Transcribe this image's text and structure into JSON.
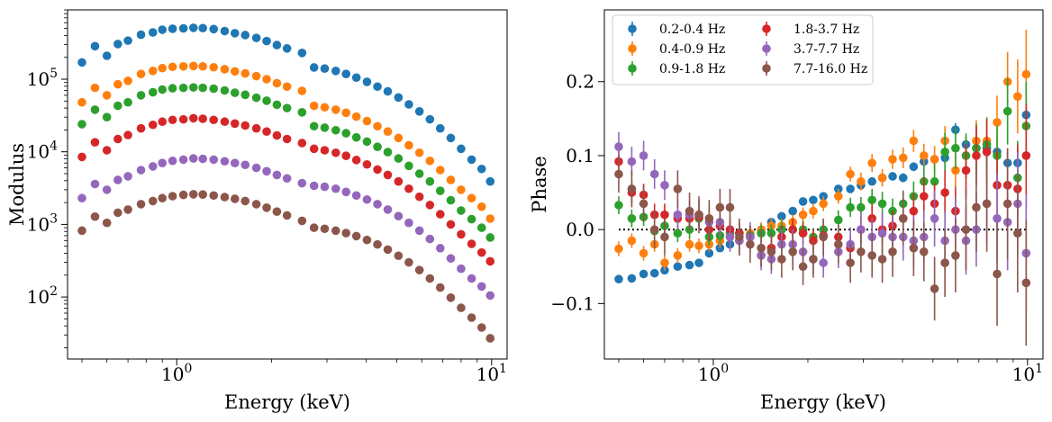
{
  "chart_data": [
    {
      "type": "scatter",
      "xscale": "log",
      "yscale": "log",
      "xlabel": "Energy (keV)",
      "ylabel": "Modulus",
      "xlim": [
        0.45,
        11.2
      ],
      "ylim": [
        14,
        900000
      ],
      "x_tick_labels": [
        "10^0",
        "10^1"
      ],
      "y_tick_labels": [
        "10^2",
        "10^3",
        "10^4",
        "10^5"
      ],
      "grid": false,
      "energies": [
        0.5,
        0.55,
        0.6,
        0.65,
        0.7,
        0.77,
        0.84,
        0.9,
        0.97,
        1.05,
        1.13,
        1.21,
        1.31,
        1.42,
        1.53,
        1.65,
        1.79,
        1.93,
        2.08,
        2.24,
        2.5,
        2.73,
        2.95,
        3.2,
        3.45,
        3.72,
        4.02,
        4.34,
        4.68,
        5.06,
        5.46,
        5.9,
        6.37,
        6.87,
        7.42,
        8.0,
        8.64,
        9.3,
        9.9
      ],
      "series": [
        {
          "name": "0.2-0.4 Hz",
          "color": "#1f77b4",
          "values": [
            170000,
            285000,
            210000,
            305000,
            340000,
            410000,
            440000,
            480000,
            495000,
            500000,
            510000,
            505000,
            490000,
            460000,
            430000,
            405000,
            370000,
            335000,
            295000,
            265000,
            230000,
            145000,
            140000,
            130000,
            118000,
            105000,
            92000,
            79000,
            68000,
            56000,
            45000,
            36000,
            28000,
            21000,
            15500,
            11000,
            7800,
            5800,
            3900
          ]
        },
        {
          "name": "0.4-0.9 Hz",
          "color": "#ff7f0e",
          "values": [
            48000,
            76000,
            60000,
            85000,
            95000,
            118000,
            130000,
            142000,
            148000,
            150000,
            152000,
            150000,
            146000,
            137000,
            128000,
            120000,
            110000,
            100000,
            88000,
            79000,
            69000,
            43000,
            41000,
            38000,
            34500,
            30500,
            26500,
            22500,
            19000,
            15500,
            12300,
            9700,
            7500,
            5600,
            4100,
            3000,
            2300,
            1750,
            1200
          ]
        },
        {
          "name": "0.9-1.8 Hz",
          "color": "#2ca02c",
          "values": [
            24000,
            38000,
            30000,
            43000,
            48000,
            60000,
            66000,
            72000,
            75000,
            76000,
            77000,
            76000,
            74000,
            70000,
            65000,
            61000,
            55500,
            50500,
            44500,
            40000,
            35000,
            22500,
            21500,
            19800,
            18000,
            15800,
            13800,
            11700,
            9900,
            8100,
            6400,
            5000,
            3900,
            2900,
            2150,
            1550,
            1180,
            900,
            660
          ]
        },
        {
          "name": "1.8-3.7 Hz",
          "color": "#d62728",
          "values": [
            8500,
            13500,
            10500,
            15000,
            17000,
            21000,
            23500,
            26000,
            27500,
            28000,
            29000,
            28500,
            27500,
            26000,
            24500,
            23000,
            21000,
            19000,
            16800,
            15000,
            13200,
            11000,
            10500,
            9700,
            8800,
            7700,
            6700,
            5700,
            4800,
            3900,
            3100,
            2400,
            1850,
            1380,
            1000,
            730,
            540,
            410,
            310
          ]
        },
        {
          "name": "3.7-7.7 Hz",
          "color": "#9467bd",
          "values": [
            2300,
            3600,
            3000,
            4100,
            4600,
            5600,
            6300,
            7000,
            7500,
            7800,
            8100,
            8000,
            7800,
            7400,
            7000,
            6600,
            6000,
            5400,
            4800,
            4300,
            3700,
            3400,
            3300,
            3100,
            2800,
            2500,
            2200,
            1900,
            1600,
            1300,
            1050,
            820,
            630,
            470,
            340,
            245,
            180,
            140,
            105
          ]
        },
        {
          "name": "7.7-16.0 Hz",
          "color": "#8c564b",
          "values": [
            820,
            1280,
            1050,
            1450,
            1600,
            1900,
            2100,
            2300,
            2450,
            2550,
            2600,
            2580,
            2500,
            2380,
            2250,
            2100,
            1900,
            1700,
            1500,
            1330,
            1120,
            900,
            870,
            820,
            760,
            690,
            610,
            530,
            450,
            370,
            300,
            235,
            180,
            135,
            98,
            71,
            52,
            38,
            27
          ]
        }
      ]
    },
    {
      "type": "scatter",
      "xscale": "log",
      "xlabel": "Energy (keV)",
      "ylabel": "Phase",
      "xlim": [
        0.45,
        11.2
      ],
      "ylim": [
        -0.175,
        0.297
      ],
      "x_tick_labels": [
        "10^0",
        "10^1"
      ],
      "y_ticks": [
        -0.1,
        0.0,
        0.1,
        0.2
      ],
      "y_tick_labels": [
        "−0.1",
        "0.0",
        "0.1",
        "0.2"
      ],
      "grid": false,
      "legend": {
        "placement": "top-left",
        "columns": 2
      },
      "reference_line": {
        "y": 0,
        "style": "dotted",
        "x_range": [
          0.5,
          9.9
        ]
      },
      "energies": [
        0.5,
        0.55,
        0.6,
        0.65,
        0.7,
        0.77,
        0.84,
        0.9,
        0.97,
        1.05,
        1.13,
        1.21,
        1.31,
        1.42,
        1.53,
        1.65,
        1.79,
        1.93,
        2.08,
        2.24,
        2.5,
        2.73,
        2.95,
        3.2,
        3.45,
        3.72,
        4.02,
        4.34,
        4.68,
        5.06,
        5.46,
        5.9,
        6.37,
        6.87,
        7.42,
        8.0,
        8.64,
        9.3,
        9.9
      ],
      "series": [
        {
          "name": "0.2-0.4 Hz",
          "color": "#1f77b4",
          "values": [
            -0.067,
            -0.066,
            -0.06,
            -0.059,
            -0.055,
            -0.05,
            -0.048,
            -0.045,
            -0.032,
            -0.025,
            -0.02,
            -0.015,
            -0.01,
            -0.005,
            0.01,
            0.018,
            0.025,
            0.038,
            0.04,
            0.045,
            0.055,
            0.055,
            0.06,
            0.065,
            0.07,
            0.072,
            0.07,
            0.085,
            0.092,
            0.095,
            0.097,
            0.135,
            0.115,
            0.11,
            0.11,
            0.105,
            0.09,
            0.09,
            0.155
          ],
          "errors": [
            0.005,
            0.005,
            0.005,
            0.005,
            0.005,
            0.005,
            0.005,
            0.005,
            0.005,
            0.005,
            0.005,
            0.005,
            0.005,
            0.005,
            0.005,
            0.005,
            0.005,
            0.005,
            0.005,
            0.005,
            0.005,
            0.005,
            0.005,
            0.005,
            0.005,
            0.005,
            0.006,
            0.006,
            0.006,
            0.007,
            0.008,
            0.009,
            0.01,
            0.011,
            0.012,
            0.013,
            0.015,
            0.017,
            0.02
          ]
        },
        {
          "name": "0.4-0.9 Hz",
          "color": "#ff7f0e",
          "values": [
            -0.026,
            -0.015,
            -0.032,
            -0.02,
            -0.045,
            -0.035,
            -0.02,
            -0.022,
            -0.02,
            -0.015,
            -0.01,
            -0.005,
            -0.005,
            0.0,
            0.005,
            0.005,
            0.01,
            0.02,
            0.025,
            0.035,
            0.045,
            0.075,
            0.065,
            0.09,
            0.07,
            0.095,
            0.097,
            0.12,
            0.1,
            0.095,
            0.12,
            0.08,
            0.1,
            0.12,
            0.12,
            0.145,
            0.2,
            0.18,
            0.21
          ],
          "errors": [
            0.01,
            0.01,
            0.01,
            0.01,
            0.01,
            0.01,
            0.01,
            0.01,
            0.01,
            0.01,
            0.01,
            0.01,
            0.01,
            0.01,
            0.01,
            0.01,
            0.01,
            0.01,
            0.01,
            0.01,
            0.01,
            0.01,
            0.012,
            0.012,
            0.012,
            0.013,
            0.014,
            0.015,
            0.016,
            0.018,
            0.02,
            0.022,
            0.025,
            0.028,
            0.032,
            0.036,
            0.04,
            0.05,
            0.06
          ]
        },
        {
          "name": "0.9-1.8 Hz",
          "color": "#2ca02c",
          "values": [
            0.033,
            0.015,
            0.017,
            -0.002,
            0.005,
            -0.005,
            0.0,
            0.015,
            -0.01,
            -0.008,
            -0.005,
            -0.005,
            -0.008,
            -0.005,
            -0.005,
            0.0,
            0.0,
            0.0,
            -0.01,
            0.0,
            0.013,
            0.03,
            0.03,
            0.04,
            0.035,
            0.025,
            0.035,
            0.045,
            0.065,
            0.065,
            0.105,
            0.11,
            0.1,
            0.11,
            0.115,
            0.1,
            0.16,
            0.07,
            0.14
          ],
          "errors": [
            0.012,
            0.012,
            0.012,
            0.012,
            0.012,
            0.012,
            0.012,
            0.012,
            0.012,
            0.012,
            0.012,
            0.012,
            0.012,
            0.012,
            0.012,
            0.012,
            0.012,
            0.012,
            0.012,
            0.012,
            0.013,
            0.013,
            0.014,
            0.015,
            0.016,
            0.017,
            0.018,
            0.02,
            0.022,
            0.024,
            0.026,
            0.028,
            0.03,
            0.033,
            0.036,
            0.04,
            0.045,
            0.05,
            0.06
          ]
        },
        {
          "name": "1.8-3.7 Hz",
          "color": "#d62728",
          "values": [
            0.092,
            0.05,
            0.047,
            0.02,
            0.02,
            0.015,
            0.015,
            0.017,
            0.0,
            0.005,
            0.0,
            -0.005,
            -0.01,
            -0.035,
            -0.025,
            -0.01,
            0.0,
            -0.005,
            -0.015,
            -0.008,
            -0.01,
            -0.025,
            0.0,
            0.015,
            0.0,
            0.005,
            0.015,
            0.025,
            0.045,
            0.035,
            0.05,
            0.025,
            0.08,
            0.1,
            0.105,
            0.06,
            0.06,
            0.055,
            0.1
          ],
          "errors": [
            0.015,
            0.015,
            0.015,
            0.015,
            0.015,
            0.015,
            0.015,
            0.015,
            0.015,
            0.015,
            0.015,
            0.015,
            0.015,
            0.015,
            0.015,
            0.015,
            0.015,
            0.015,
            0.015,
            0.015,
            0.016,
            0.017,
            0.018,
            0.019,
            0.02,
            0.021,
            0.022,
            0.024,
            0.026,
            0.028,
            0.03,
            0.033,
            0.036,
            0.04,
            0.044,
            0.048,
            0.05,
            0.06,
            0.07
          ]
        },
        {
          "name": "3.7-7.7 Hz",
          "color": "#9467bd",
          "values": [
            0.112,
            0.092,
            0.1,
            0.075,
            0.06,
            0.02,
            0.02,
            0.02,
            0.01,
            0.01,
            -0.01,
            -0.015,
            -0.01,
            -0.035,
            -0.04,
            -0.02,
            -0.02,
            -0.03,
            -0.04,
            -0.045,
            -0.03,
            -0.02,
            0.0,
            -0.01,
            -0.005,
            -0.01,
            -0.01,
            -0.015,
            -0.01,
            0.015,
            -0.015,
            0.0,
            -0.015,
            0.0,
            0.035,
            0.015,
            0.01,
            0.035,
            -0.032
          ],
          "errors": [
            0.02,
            0.02,
            0.02,
            0.02,
            0.02,
            0.02,
            0.02,
            0.02,
            0.02,
            0.02,
            0.02,
            0.02,
            0.02,
            0.02,
            0.02,
            0.02,
            0.02,
            0.02,
            0.02,
            0.02,
            0.022,
            0.023,
            0.024,
            0.026,
            0.028,
            0.03,
            0.032,
            0.034,
            0.036,
            0.038,
            0.04,
            0.043,
            0.046,
            0.05,
            0.055,
            0.06,
            0.065,
            0.07,
            0.08
          ]
        },
        {
          "name": "7.7-16.0 Hz",
          "color": "#8c564b",
          "values": [
            0.075,
            0.055,
            0.035,
            0.0,
            -0.01,
            0.055,
            0.025,
            0.02,
            0.015,
            0.03,
            0.03,
            -0.01,
            -0.02,
            -0.025,
            -0.03,
            -0.04,
            -0.03,
            -0.05,
            -0.04,
            -0.01,
            -0.02,
            -0.045,
            -0.03,
            -0.035,
            -0.04,
            -0.03,
            0.015,
            -0.025,
            -0.03,
            -0.08,
            -0.045,
            -0.035,
            0.0,
            0.03,
            0.035,
            -0.06,
            0.035,
            -0.005,
            -0.072
          ],
          "errors": [
            0.025,
            0.025,
            0.025,
            0.025,
            0.025,
            0.025,
            0.025,
            0.025,
            0.025,
            0.025,
            0.025,
            0.025,
            0.025,
            0.025,
            0.025,
            0.025,
            0.025,
            0.025,
            0.025,
            0.025,
            0.026,
            0.027,
            0.028,
            0.03,
            0.032,
            0.034,
            0.036,
            0.038,
            0.04,
            0.043,
            0.046,
            0.05,
            0.055,
            0.06,
            0.065,
            0.07,
            0.075,
            0.08,
            0.085
          ]
        }
      ]
    }
  ]
}
